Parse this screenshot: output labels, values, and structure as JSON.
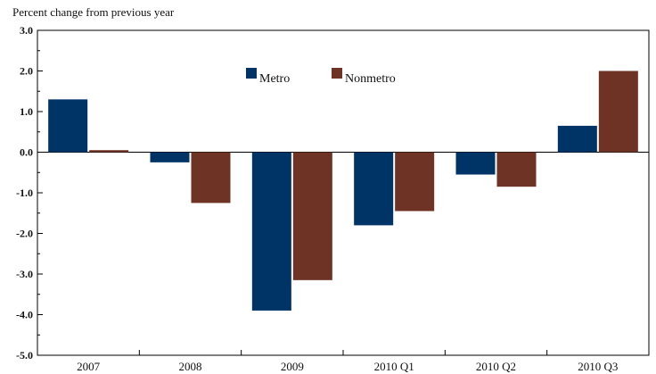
{
  "chart_data": {
    "type": "bar",
    "title": "",
    "xlabel": "",
    "ylabel": "Percent change from previous year",
    "categories": [
      "2007",
      "2008",
      "2009",
      "2010 Q1",
      "2010 Q2",
      "2010 Q3"
    ],
    "series": [
      {
        "name": "Metro",
        "color": "#003466",
        "values": [
          1.3,
          -0.25,
          -3.9,
          -1.8,
          -0.55,
          0.65
        ]
      },
      {
        "name": "Nonmetro",
        "color": "#6e3325",
        "values": [
          0.05,
          -1.25,
          -3.15,
          -1.45,
          -0.85,
          2.0
        ]
      }
    ],
    "ylim": [
      -5.0,
      3.0
    ],
    "yticks": [
      "3.0",
      "2.0",
      "1.0",
      "0.0",
      "-1.0",
      "-2.0",
      "-3.0",
      "-4.0",
      "-5.0"
    ],
    "grid": false,
    "legend_position": "top-center"
  }
}
